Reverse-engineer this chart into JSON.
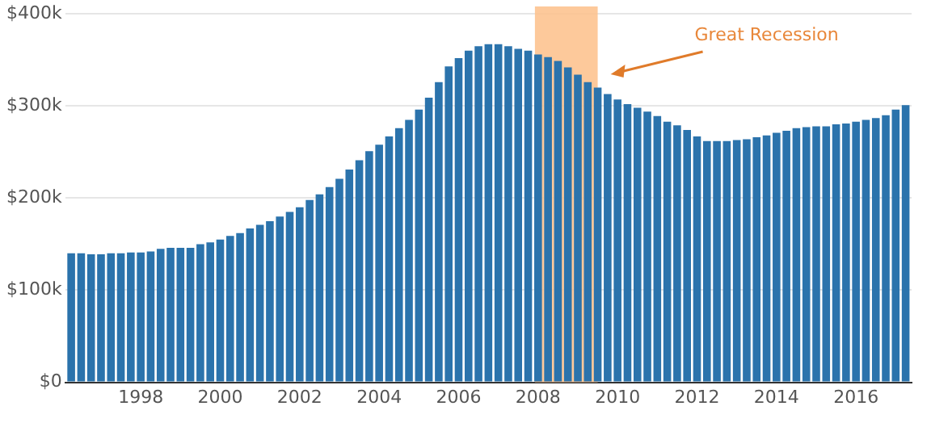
{
  "chart_data": {
    "type": "bar",
    "x": [
      1996.25,
      1996.5,
      1996.75,
      1997,
      1997.25,
      1997.5,
      1997.75,
      1998,
      1998.25,
      1998.5,
      1998.75,
      1999,
      1999.25,
      1999.5,
      1999.75,
      2000,
      2000.25,
      2000.5,
      2000.75,
      2001,
      2001.25,
      2001.5,
      2001.75,
      2002,
      2002.25,
      2002.5,
      2002.75,
      2003,
      2003.25,
      2003.5,
      2003.75,
      2004,
      2004.25,
      2004.5,
      2004.75,
      2005,
      2005.25,
      2005.5,
      2005.75,
      2006,
      2006.25,
      2006.5,
      2006.75,
      2007,
      2007.25,
      2007.5,
      2007.75,
      2008,
      2008.25,
      2008.5,
      2008.75,
      2009,
      2009.25,
      2009.5,
      2009.75,
      2010,
      2010.25,
      2010.5,
      2010.75,
      2011,
      2011.25,
      2011.5,
      2011.75,
      2012,
      2012.25,
      2012.5,
      2012.75,
      2013,
      2013.25,
      2013.5,
      2013.75,
      2014,
      2014.25,
      2014.5,
      2014.75,
      2015,
      2015.25,
      2015.5,
      2015.75,
      2016,
      2016.25,
      2016.5,
      2016.75,
      2017,
      2017.25
    ],
    "values": [
      140000,
      140000,
      139000,
      139000,
      140000,
      140000,
      141000,
      141000,
      142000,
      145000,
      146000,
      146000,
      146000,
      150000,
      152000,
      155000,
      159000,
      162000,
      167000,
      171000,
      175000,
      180000,
      185000,
      190000,
      198000,
      204000,
      212000,
      221000,
      231000,
      241000,
      251000,
      258000,
      267000,
      276000,
      285000,
      296000,
      309000,
      326000,
      343000,
      352000,
      360000,
      365000,
      367000,
      367000,
      365000,
      362000,
      360000,
      356000,
      353000,
      349000,
      342000,
      334000,
      326000,
      320000,
      313000,
      307000,
      302000,
      298000,
      294000,
      289000,
      283000,
      279000,
      274000,
      267000,
      262000,
      262000,
      262000,
      263000,
      264000,
      266000,
      268000,
      271000,
      273000,
      276000,
      277000,
      278000,
      278000,
      280000,
      281000,
      283000,
      285000,
      287000,
      290000,
      296000,
      301000
    ],
    "color": "#2b73ac",
    "xlim": [
      1996.1,
      2017.4
    ],
    "xticks": [
      1998,
      2000,
      2002,
      2004,
      2006,
      2008,
      2010,
      2012,
      2014,
      2016
    ],
    "ylim": [
      0,
      400000
    ],
    "yticks": [
      {
        "value": 0,
        "label": "$0"
      },
      {
        "value": 100000,
        "label": "$100k"
      },
      {
        "value": 200000,
        "label": "$200k"
      },
      {
        "value": 300000,
        "label": "$300k"
      },
      {
        "value": 400000,
        "label": "$400k"
      }
    ],
    "grid": "y",
    "bands": [
      {
        "axis": "x",
        "from": 2007.92,
        "to": 2009.5,
        "color": "#fdc08a"
      }
    ],
    "annotations": [
      "Great Recession"
    ]
  }
}
